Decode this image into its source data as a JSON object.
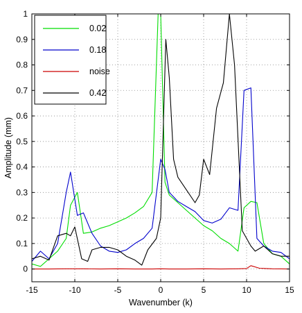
{
  "chart_data": {
    "type": "line",
    "xlabel": "Wavenumber (k)",
    "ylabel": "Amplitude (mm)",
    "xlim": [
      -15,
      15
    ],
    "ylim": [
      -0.05,
      1.0
    ],
    "xticks": [
      "-15",
      "-10",
      "-5",
      "0",
      "5",
      "10",
      "15"
    ],
    "yticks": [
      "0",
      "0.1",
      "0.2",
      "0.3",
      "0.4",
      "0.5",
      "0.6",
      "0.7",
      "0.8",
      "0.9",
      "1"
    ],
    "grid": "dotted",
    "legend_position": "top-left",
    "series": [
      {
        "name": "0.02",
        "color": "#00dd00",
        "x": [
          -15,
          -14,
          -13,
          -12,
          -11,
          -10.5,
          -9.7,
          -9,
          -8,
          -7,
          -6,
          -5,
          -4,
          -3,
          -2,
          -1,
          -0.3,
          0,
          0.5,
          1,
          2,
          3,
          4,
          5,
          6,
          7,
          8,
          9,
          9.7,
          10.5,
          11.2,
          12,
          13,
          14,
          15
        ],
        "y": [
          0.02,
          0.01,
          0.04,
          0.07,
          0.12,
          0.25,
          0.3,
          0.14,
          0.145,
          0.16,
          0.17,
          0.185,
          0.2,
          0.22,
          0.245,
          0.3,
          1.0,
          1.0,
          0.34,
          0.29,
          0.26,
          0.23,
          0.2,
          0.17,
          0.15,
          0.12,
          0.1,
          0.07,
          0.24,
          0.265,
          0.26,
          0.1,
          0.06,
          0.05,
          0.02
        ]
      },
      {
        "name": "0.18",
        "color": "#0000cc",
        "x": [
          -15,
          -14,
          -13,
          -12,
          -11,
          -10.5,
          -9.7,
          -9,
          -8,
          -7,
          -6,
          -5,
          -4,
          -3,
          -2,
          -1,
          0,
          0.5,
          1,
          2,
          3,
          4,
          5,
          6,
          7,
          8,
          9,
          9.7,
          10.5,
          11.2,
          12,
          13,
          14,
          15
        ],
        "y": [
          0.03,
          0.07,
          0.04,
          0.1,
          0.3,
          0.38,
          0.21,
          0.22,
          0.14,
          0.09,
          0.07,
          0.065,
          0.075,
          0.1,
          0.12,
          0.16,
          0.43,
          0.39,
          0.3,
          0.265,
          0.245,
          0.225,
          0.19,
          0.18,
          0.195,
          0.24,
          0.23,
          0.7,
          0.71,
          0.12,
          0.09,
          0.07,
          0.065,
          0.04
        ]
      },
      {
        "name": "noise",
        "color": "#cc0000",
        "x": [
          -15,
          -13,
          -11,
          -9,
          -7,
          -5,
          -3,
          -1,
          0,
          1,
          3,
          5,
          7,
          9,
          10,
          10.5,
          11.5,
          13,
          15
        ],
        "y": [
          0.0,
          0.0,
          0.001,
          0.001,
          0.0,
          0.001,
          0.0,
          0.0,
          0.001,
          0.0,
          0.0,
          0.001,
          0.0,
          0.001,
          0.002,
          0.013,
          0.003,
          0.001,
          0.0
        ]
      },
      {
        "name": "0.42",
        "color": "#000000",
        "x": [
          -15,
          -14,
          -13,
          -12,
          -11,
          -10.5,
          -10,
          -9.2,
          -8.5,
          -8,
          -7,
          -6,
          -5,
          -4,
          -3,
          -2.2,
          -1.5,
          -0.5,
          0,
          0.6,
          1,
          1.5,
          2,
          3,
          4,
          4.5,
          5,
          5.7,
          6.5,
          7.3,
          8,
          8.6,
          9.5,
          10.5,
          11,
          12,
          13,
          14,
          15
        ],
        "y": [
          0.04,
          0.05,
          0.035,
          0.13,
          0.14,
          0.13,
          0.165,
          0.04,
          0.03,
          0.075,
          0.085,
          0.085,
          0.075,
          0.05,
          0.035,
          0.015,
          0.075,
          0.12,
          0.2,
          0.9,
          0.75,
          0.43,
          0.36,
          0.31,
          0.26,
          0.29,
          0.43,
          0.37,
          0.63,
          0.73,
          1.0,
          0.8,
          0.15,
          0.09,
          0.07,
          0.09,
          0.06,
          0.05,
          0.05
        ]
      }
    ]
  }
}
